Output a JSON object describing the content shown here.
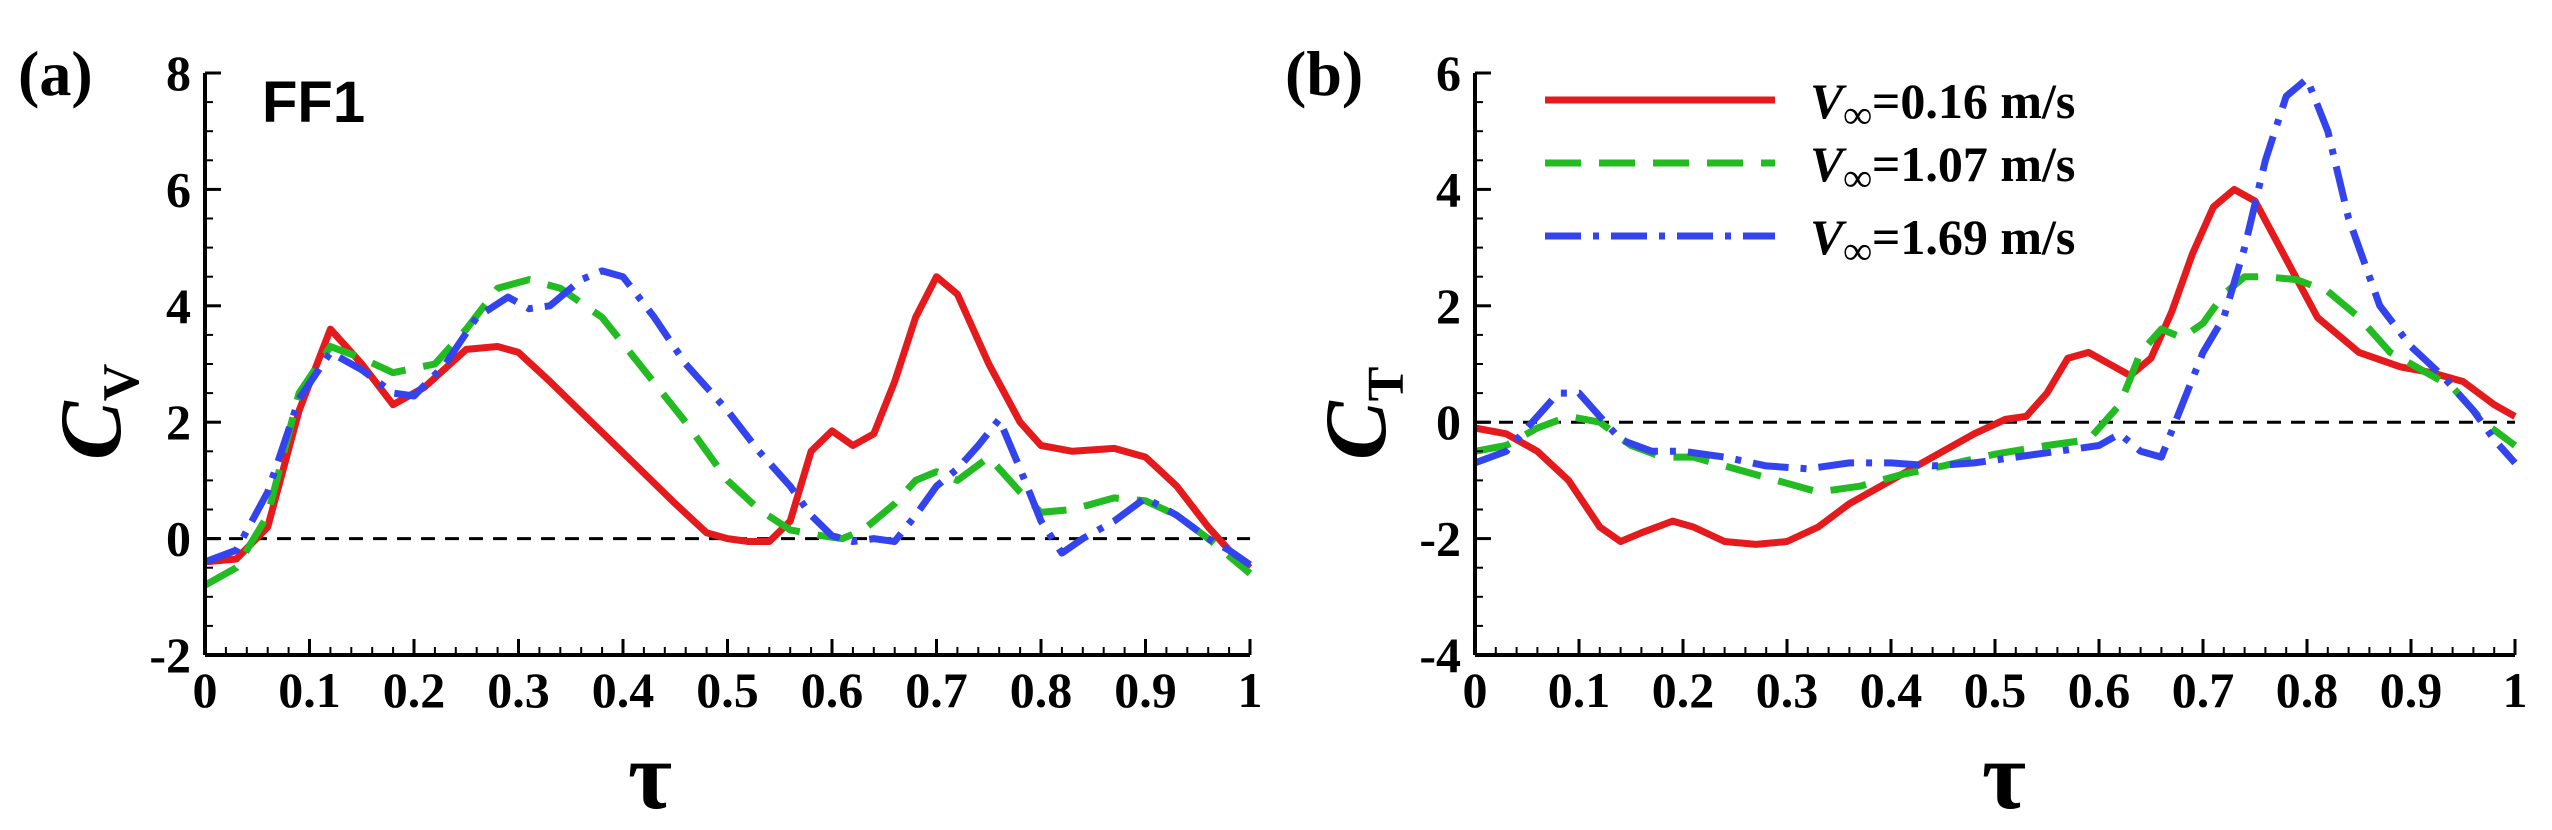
{
  "chart_data": [
    {
      "panel_label": "(a)",
      "annotation": "FF1",
      "type": "line",
      "title": "",
      "xlabel": "τ",
      "ylabel": {
        "main": "C",
        "sub": "V"
      },
      "xlim": [
        0,
        1
      ],
      "ylim": [
        -2,
        8
      ],
      "xticks": [
        "0",
        "0.1",
        "0.2",
        "0.3",
        "0.4",
        "0.5",
        "0.6",
        "0.7",
        "0.8",
        "0.9",
        "1"
      ],
      "yticks": [
        "-2",
        "0",
        "2",
        "4",
        "6",
        "8"
      ],
      "reference_line": 0,
      "series": [
        {
          "name": "V∞=0.16 m/s",
          "color": "#e41a1c",
          "style": "solid",
          "x": [
            0,
            0.03,
            0.06,
            0.09,
            0.12,
            0.15,
            0.18,
            0.21,
            0.25,
            0.28,
            0.3,
            0.33,
            0.37,
            0.41,
            0.45,
            0.48,
            0.5,
            0.52,
            0.54,
            0.56,
            0.58,
            0.6,
            0.62,
            0.64,
            0.66,
            0.68,
            0.7,
            0.72,
            0.75,
            0.78,
            0.8,
            0.83,
            0.87,
            0.9,
            0.93,
            0.96,
            0.98,
            1.0
          ],
          "y": [
            -0.4,
            -0.35,
            0.2,
            2.2,
            3.6,
            3.0,
            2.3,
            2.6,
            3.25,
            3.3,
            3.2,
            2.7,
            2.0,
            1.3,
            0.6,
            0.1,
            0.0,
            -0.05,
            -0.05,
            0.3,
            1.5,
            1.85,
            1.6,
            1.8,
            2.7,
            3.8,
            4.5,
            4.2,
            3.0,
            2.0,
            1.6,
            1.5,
            1.55,
            1.4,
            0.9,
            0.2,
            -0.2,
            -0.5
          ]
        },
        {
          "name": "V∞=1.07 m/s",
          "color": "#22bb22",
          "style": "dash",
          "x": [
            0,
            0.03,
            0.06,
            0.09,
            0.12,
            0.15,
            0.18,
            0.22,
            0.25,
            0.28,
            0.31,
            0.34,
            0.38,
            0.42,
            0.46,
            0.5,
            0.53,
            0.56,
            0.59,
            0.61,
            0.63,
            0.66,
            0.68,
            0.7,
            0.72,
            0.75,
            0.78,
            0.8,
            0.83,
            0.87,
            0.9,
            0.93,
            0.96,
            0.98,
            1.0
          ],
          "y": [
            -0.8,
            -0.5,
            0.4,
            2.5,
            3.3,
            3.1,
            2.85,
            3.0,
            3.6,
            4.3,
            4.45,
            4.3,
            3.8,
            2.9,
            2.0,
            1.0,
            0.5,
            0.15,
            0.05,
            0.0,
            0.15,
            0.6,
            1.0,
            1.15,
            1.0,
            1.4,
            0.8,
            0.45,
            0.5,
            0.7,
            0.65,
            0.4,
            0.0,
            -0.3,
            -0.6
          ]
        },
        {
          "name": "V∞=1.69 m/s",
          "color": "#3344ee",
          "style": "dashdot",
          "x": [
            0,
            0.03,
            0.06,
            0.09,
            0.12,
            0.15,
            0.18,
            0.2,
            0.23,
            0.26,
            0.29,
            0.31,
            0.33,
            0.36,
            0.38,
            0.4,
            0.43,
            0.46,
            0.5,
            0.53,
            0.56,
            0.58,
            0.6,
            0.62,
            0.64,
            0.66,
            0.68,
            0.7,
            0.72,
            0.74,
            0.76,
            0.78,
            0.8,
            0.82,
            0.84,
            0.87,
            0.9,
            0.93,
            0.96,
            0.98,
            1.0
          ],
          "y": [
            -0.4,
            -0.2,
            0.8,
            2.4,
            3.2,
            2.9,
            2.5,
            2.45,
            3.0,
            3.8,
            4.15,
            3.95,
            4.0,
            4.45,
            4.6,
            4.5,
            3.8,
            3.0,
            2.2,
            1.5,
            0.9,
            0.4,
            0.05,
            -0.05,
            0.0,
            -0.05,
            0.4,
            0.9,
            1.2,
            1.6,
            2.05,
            1.2,
            0.3,
            -0.25,
            0.0,
            0.3,
            0.7,
            0.4,
            0.0,
            -0.2,
            -0.45
          ]
        }
      ]
    },
    {
      "panel_label": "(b)",
      "type": "line",
      "title": "",
      "xlabel": "τ",
      "ylabel": {
        "main": "C",
        "sub": "T"
      },
      "xlim": [
        0,
        1
      ],
      "ylim": [
        -4,
        6
      ],
      "xticks": [
        "0",
        "0.1",
        "0.2",
        "0.3",
        "0.4",
        "0.5",
        "0.6",
        "0.7",
        "0.8",
        "0.9",
        "1"
      ],
      "yticks": [
        "-4",
        "-2",
        "0",
        "2",
        "4",
        "6"
      ],
      "reference_line": 0,
      "legend": [
        {
          "symbol": "V",
          "subscript": "∞",
          "text": "=0.16 m/s",
          "series": 0
        },
        {
          "symbol": "V",
          "subscript": "∞",
          "text": "=1.07 m/s",
          "series": 1
        },
        {
          "symbol": "V",
          "subscript": "∞",
          "text": "=1.69 m/s",
          "series": 2
        }
      ],
      "series": [
        {
          "name": "V∞=0.16 m/s",
          "color": "#e41a1c",
          "style": "solid",
          "x": [
            0,
            0.03,
            0.06,
            0.09,
            0.12,
            0.14,
            0.16,
            0.19,
            0.21,
            0.24,
            0.27,
            0.3,
            0.33,
            0.36,
            0.4,
            0.44,
            0.48,
            0.51,
            0.53,
            0.55,
            0.57,
            0.59,
            0.61,
            0.63,
            0.65,
            0.67,
            0.69,
            0.71,
            0.73,
            0.75,
            0.78,
            0.81,
            0.85,
            0.89,
            0.92,
            0.95,
            0.98,
            1.0
          ],
          "y": [
            -0.1,
            -0.2,
            -0.5,
            -1.0,
            -1.8,
            -2.05,
            -1.9,
            -1.7,
            -1.8,
            -2.05,
            -2.1,
            -2.05,
            -1.8,
            -1.4,
            -1.0,
            -0.6,
            -0.2,
            0.05,
            0.1,
            0.5,
            1.1,
            1.2,
            1.0,
            0.8,
            1.1,
            1.9,
            2.9,
            3.7,
            4.0,
            3.8,
            2.8,
            1.8,
            1.2,
            0.95,
            0.85,
            0.7,
            0.3,
            0.1
          ]
        },
        {
          "name": "V∞=1.07 m/s",
          "color": "#22bb22",
          "style": "dash",
          "x": [
            0,
            0.03,
            0.06,
            0.09,
            0.12,
            0.15,
            0.18,
            0.21,
            0.25,
            0.29,
            0.33,
            0.37,
            0.41,
            0.45,
            0.5,
            0.55,
            0.59,
            0.62,
            0.64,
            0.66,
            0.68,
            0.7,
            0.72,
            0.74,
            0.76,
            0.79,
            0.82,
            0.85,
            0.88,
            0.91,
            0.94,
            0.97,
            1.0
          ],
          "y": [
            -0.5,
            -0.4,
            -0.1,
            0.1,
            0.0,
            -0.4,
            -0.6,
            -0.6,
            -0.8,
            -1.0,
            -1.2,
            -1.1,
            -0.9,
            -0.75,
            -0.55,
            -0.4,
            -0.3,
            0.3,
            1.2,
            1.6,
            1.45,
            1.7,
            2.2,
            2.5,
            2.5,
            2.45,
            2.25,
            1.8,
            1.2,
            0.9,
            0.6,
            0.0,
            -0.4
          ]
        },
        {
          "name": "V∞=1.69 m/s",
          "color": "#3344ee",
          "style": "dashdot",
          "x": [
            0,
            0.03,
            0.06,
            0.08,
            0.1,
            0.12,
            0.14,
            0.17,
            0.2,
            0.24,
            0.28,
            0.32,
            0.36,
            0.4,
            0.44,
            0.48,
            0.52,
            0.56,
            0.6,
            0.62,
            0.64,
            0.66,
            0.68,
            0.7,
            0.72,
            0.74,
            0.76,
            0.78,
            0.8,
            0.82,
            0.84,
            0.87,
            0.9,
            0.93,
            0.96,
            0.98,
            1.0
          ],
          "y": [
            -0.7,
            -0.5,
            0.1,
            0.5,
            0.5,
            0.1,
            -0.3,
            -0.5,
            -0.5,
            -0.6,
            -0.75,
            -0.8,
            -0.7,
            -0.7,
            -0.75,
            -0.7,
            -0.6,
            -0.5,
            -0.4,
            -0.2,
            -0.5,
            -0.6,
            0.3,
            1.2,
            1.8,
            3.0,
            4.5,
            5.6,
            5.9,
            5.0,
            3.5,
            2.0,
            1.3,
            0.8,
            0.2,
            -0.3,
            -0.7
          ]
        }
      ]
    }
  ]
}
